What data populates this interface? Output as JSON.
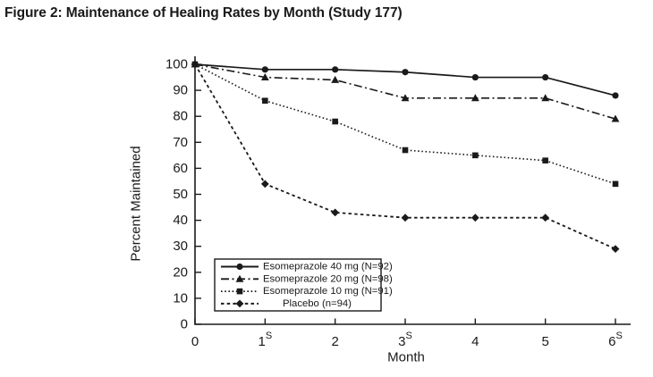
{
  "figure": {
    "title": "Figure 2: Maintenance of Healing Rates by Month (Study 177)"
  },
  "chart_data": {
    "type": "line",
    "title": "Figure 2: Maintenance of Healing Rates by Month (Study 177)",
    "xlabel": "Month",
    "ylabel": "Percent Maintained",
    "x": [
      0,
      1,
      2,
      3,
      4,
      5,
      6
    ],
    "x_tick_labels": [
      "0",
      "1",
      "2",
      "3",
      "4",
      "5",
      "6"
    ],
    "x_tick_superscripts": [
      "",
      "S",
      "",
      "S",
      "",
      "",
      "S"
    ],
    "y_ticks": [
      0,
      10,
      20,
      30,
      40,
      50,
      60,
      70,
      80,
      90,
      100
    ],
    "ylim": [
      0,
      100
    ],
    "grid": false,
    "line_color": "#1a1a1a",
    "legend_position": "inside-lower-left",
    "series": [
      {
        "name": "Esomeprazole 40 mg (N=92)",
        "marker": "circle",
        "line_style": "solid",
        "values": [
          100,
          98,
          98,
          97,
          95,
          95,
          88
        ]
      },
      {
        "name": "Esomeprazole 20 mg (N=98)",
        "marker": "triangle",
        "line_style": "dash-dot",
        "values": [
          100,
          95,
          94,
          87,
          87,
          87,
          79
        ]
      },
      {
        "name": "Esomeprazole 10 mg (N=91)",
        "marker": "square",
        "line_style": "dotted",
        "values": [
          100,
          86,
          78,
          67,
          65,
          63,
          54
        ]
      },
      {
        "name": "Placebo (n=94)",
        "marker": "diamond",
        "line_style": "dashed",
        "values": [
          100,
          54,
          43,
          41,
          41,
          41,
          29
        ]
      }
    ]
  }
}
